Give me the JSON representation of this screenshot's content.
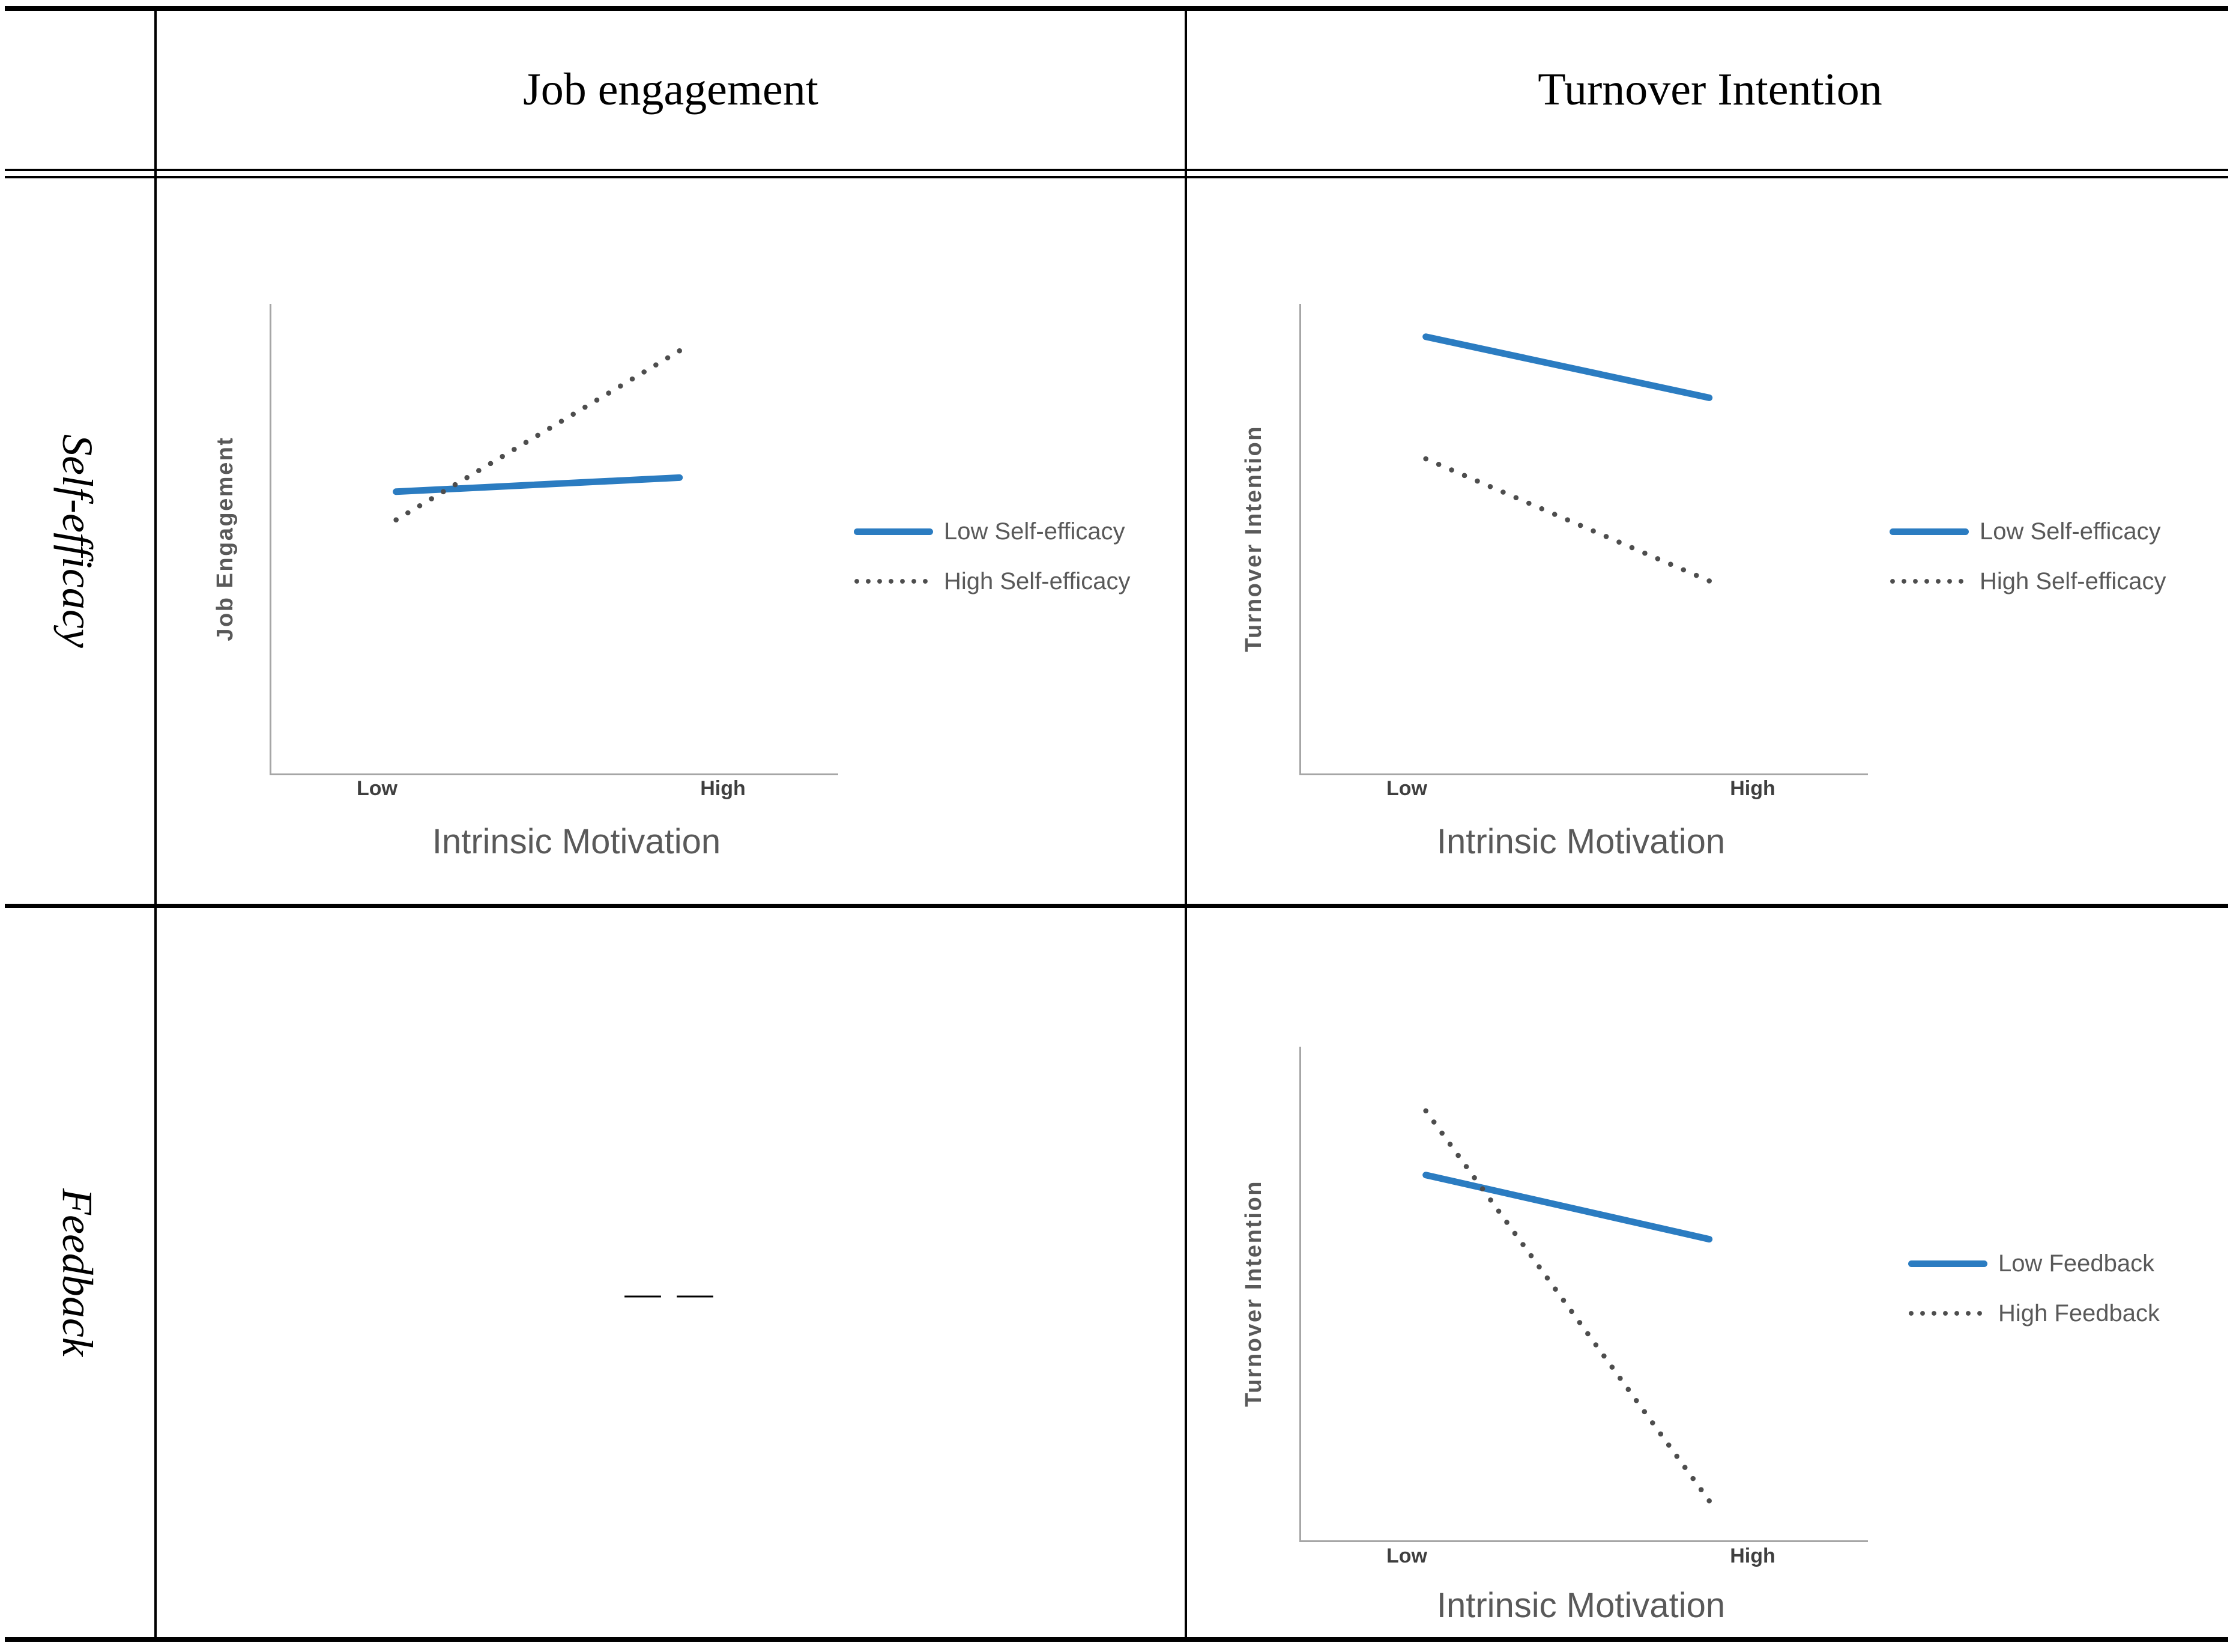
{
  "table": {
    "col_headers": [
      "Job engagement",
      "Turnover Intention"
    ],
    "row_headers": [
      "Self-efficacy",
      "Feedback"
    ],
    "empty_cell_dashes": "— —"
  },
  "colors": {
    "accent_blue": "#2b7cc1",
    "dot_gray": "#4d4d4d",
    "axis_gray": "#a6a6a6",
    "label_gray": "#595959",
    "tick_gray": "#3f3f3f",
    "border_black": "#000000"
  },
  "chart_data": [
    {
      "id": "job-engagement-by-self-efficacy",
      "type": "line",
      "x": [
        "Low",
        "High"
      ],
      "xlabel": "Intrinsic Motivation",
      "ylabel": "Job Engagement",
      "ylim": [
        0,
        1
      ],
      "grid": false,
      "legend_position": "right",
      "series": [
        {
          "name": "Low Self-efficacy",
          "style": "solid",
          "color": "#2b7cc1",
          "values": [
            0.6,
            0.63
          ]
        },
        {
          "name": "High Self-efficacy",
          "style": "dotted",
          "color": "#4d4d4d",
          "values": [
            0.54,
            0.9
          ]
        }
      ]
    },
    {
      "id": "turnover-intention-by-self-efficacy",
      "type": "line",
      "x": [
        "Low",
        "High"
      ],
      "xlabel": "Intrinsic Motivation",
      "ylabel": "Turnover Intention",
      "ylim": [
        0,
        1
      ],
      "grid": false,
      "legend_position": "right",
      "series": [
        {
          "name": "Low Self-efficacy",
          "style": "solid",
          "color": "#2b7cc1",
          "values": [
            0.93,
            0.8
          ]
        },
        {
          "name": "High Self-efficacy",
          "style": "dotted",
          "color": "#4d4d4d",
          "values": [
            0.67,
            0.41
          ]
        }
      ]
    },
    {
      "id": "turnover-intention-by-feedback",
      "type": "line",
      "x": [
        "Low",
        "High"
      ],
      "xlabel": "Intrinsic Motivation",
      "ylabel": "Turnover Intention",
      "ylim": [
        0,
        1
      ],
      "grid": false,
      "legend_position": "right",
      "series": [
        {
          "name": "Low Feedback",
          "style": "solid",
          "color": "#2b7cc1",
          "values": [
            0.74,
            0.61
          ]
        },
        {
          "name": "High Feedback",
          "style": "dotted",
          "color": "#4d4d4d",
          "values": [
            0.87,
            0.08
          ]
        }
      ]
    }
  ]
}
